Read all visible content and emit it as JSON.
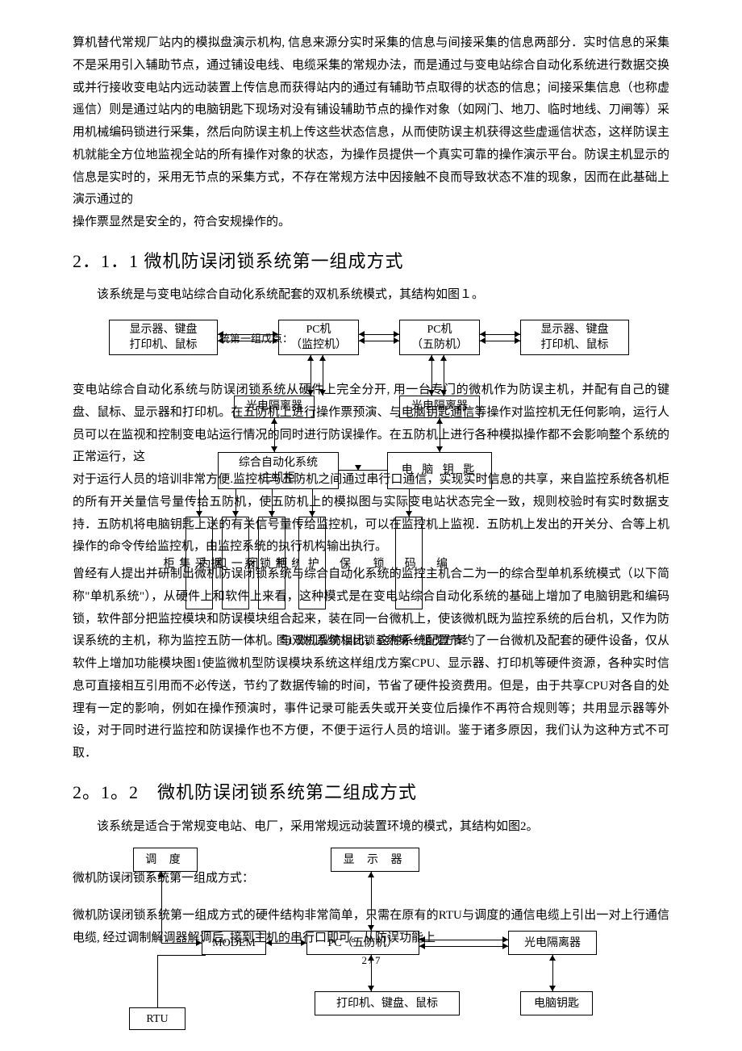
{
  "p1": "算机替代常规厂站内的模拟盘演示机构, 信息来源分实时采集的信息与间接采集的信息两部分．实时信息的采集不是采用引入辅助节点，通过铺设电线、电缆采集的常规办法，而是通过与变电站综合自动化系统进行数据交换或并行接收变电站内远动装置上传信息而获得站内的通过有辅助节点取得的状态的信息；间接采集信息（也称虚遥信）则是通过站内的电脑钥匙下现场对没有铺设辅助节点的操作对象（如网门、地刀、临时地线、刀闸等）采用机械编码锁进行采集，然后向防误主机上传这些状态信息，从而使防误主机获得这些虚遥信状态，这样防误主机就能全方位地监视全站的所有操作对象的状态，为操作员提供一个真实可靠的操作演示平台。防误主机显示的信息是实时的，采用无节点的采集方式，不存在常规方法中因接触不良而导致状态不准的现象，因而在此基础上演示通过的",
  "p1b": "操作票显然是安全的，符合安规操作的。",
  "h1": "2．1．1  微机防误闭锁系统第一组成方式",
  "p2": "该系统是与变电站综合自动化系统配套的双机系统模式，其结构如图１。",
  "p3": "变电站综合自动化系统与防误闭锁系统从硬件上完全分开, 用一台专门的微机作为防误主机，并配有自己的键盘、鼠标、显示器和打印机。在五防机上进行操作票预演、与电脑钥匙通信等操作对监控机无任何影响，运行人员可以在监视和控制变电站运行情况的同时进行防误操作。在五防机上进行各种模拟操作都不会影响整个系统的正常运行，这",
  "p4": "对于运行人员的培训非常方便.监控机与五防机之间通过串行口通信，实现实时信息的共享，来自监控系统各机柜的所有开关量信号量传给五防机，使五防机上的模拟图与实际变电站状态完全一致，规则校验时有实时数据支持．五防机将电脑钥匙上送的有关信号量传给监控机，可以在监控机上监视．五防机上发出的开关分、合等上机操作的命令传给监控机，由监控系统的执行机构输出执行。",
  "p5": "曾经有人提出并研制出微机防误闭锁系统与综合自动化系统的监控主机合二为一的综合型单机系统模式（以下简称\"单机系统\"），从硬件上和软件上来看，这种模式是在变电站综合自动化系统的基础上增加了电脑钥匙和编码锁，软件部分把监控模块和防误模块组合起来，装在同一台微机上，使该微机既为监控系统的后台机，又作为防误系统的主机，称为监控五防一体机。与双机系统相比，这种系统配置节约了一台微机及配套的硬件设备，仅从软件上增加功能模块图1使监微机型防误模块系统这样组戊方案CPU、显示器、打印机等硬件资源，各种实时信息可直接相互引用而不必传送，节约了数据传输的时间，节省了硬件投资费用。但是，由于共享CPU对各自的处理有一定的影响，例如在操作预演时，事件记录可能丢失或开关变位后操作不再符合规则等；共用显示器等外设，对于同时进行监控和防误操作也不方便，不便于运行人员的培训。鉴于诸多原因，我们认为这种方式不可取．",
  "h2": "2。1。2　微机防误闭锁系统第二组成方式",
  "p6": "该系统是适合于常规变电站、电厂，采用常规远动装置环境的模式，其结构如图2。",
  "p7": "微机防误闭锁系统第一组成方式：",
  "p8": "微机防误闭锁系统第一组成方式的硬件结构非常简单，只需在原有的RTU与调度的通信电缆上引出一对上行通信电缆, 经过调制解调器解调后, 接到主机的串行口即可。从防误功能上",
  "pagenum": "2 / 7",
  "d1": {
    "b1": "显示器、键盘\n打印机、鼠标",
    "b2": "PC机\n（监控机）",
    "b3": "PC机\n（五防机）",
    "b4": "显示器、键盘\n打印机、鼠标",
    "b5": "光电隔离器",
    "b6": "光电隔离器",
    "b7": "综合自动化系统\n主机柜",
    "b8": "电 脑 钥 匙",
    "b9": "数\n据\n采\n集\n柜",
    "b10": "控\n闭\n一\n和\n为",
    "b11": "统\n制\n锁\n系",
    "b12": "保\n\n护\n\n柜",
    "b13": "编\n\n码\n\n锁",
    "mid": "统第一组戊点：",
    "cap": "图1 微机型防误闭锁系统第一组戊方案"
  },
  "d2": {
    "b1": "调 度",
    "b2": "显 示 器",
    "b3": "MODEM",
    "b4": "PC（五防机）",
    "b5": "光电隔离器",
    "b6": "打印机、键盘、鼠标",
    "b7": "电脑钥匙",
    "b8": "RTU"
  }
}
